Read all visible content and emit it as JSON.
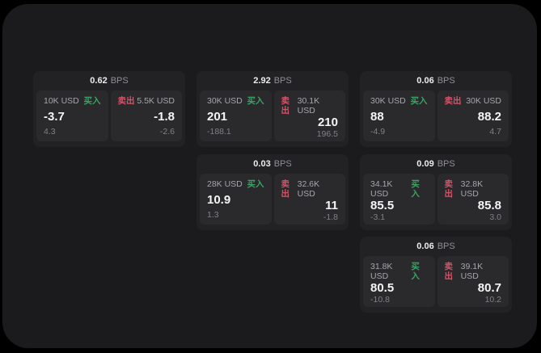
{
  "labels": {
    "bps_unit": "BPS",
    "buy": "买入",
    "sell": "卖出"
  },
  "colors": {
    "background": "#000000",
    "panel": "#1b1b1d",
    "card": "#222225",
    "subpanel": "#2a2a2d",
    "buy_accent": "#3aa364",
    "sell_accent": "#d25468",
    "value_text": "#f5f5f7",
    "muted_text": "#808086"
  },
  "cards": [
    {
      "bps": "0.62",
      "buy": {
        "notional": "10K USD",
        "price": "-3.7",
        "delta": "4.3"
      },
      "sell": {
        "notional": "5.5K USD",
        "price": "-1.8",
        "delta": "-2.6"
      }
    },
    {
      "bps": "2.92",
      "buy": {
        "notional": "30K USD",
        "price": "201",
        "delta": "-188.1"
      },
      "sell": {
        "notional": "30.1K USD",
        "price": "210",
        "delta": "196.5"
      }
    },
    {
      "bps": "0.06",
      "buy": {
        "notional": "30K USD",
        "price": "88",
        "delta": "-4.9"
      },
      "sell": {
        "notional": "30K USD",
        "price": "88.2",
        "delta": "4.7"
      }
    },
    {
      "bps": "0.03",
      "buy": {
        "notional": "28K USD",
        "price": "10.9",
        "delta": "1.3"
      },
      "sell": {
        "notional": "32.6K USD",
        "price": "11",
        "delta": "-1.8"
      }
    },
    {
      "bps": "0.09",
      "buy": {
        "notional": "34.1K USD",
        "price": "85.5",
        "delta": "-3.1"
      },
      "sell": {
        "notional": "32.8K USD",
        "price": "85.8",
        "delta": "3.0"
      }
    },
    {
      "bps": "0.06",
      "buy": {
        "notional": "31.8K USD",
        "price": "80.5",
        "delta": "-10.8"
      },
      "sell": {
        "notional": "39.1K USD",
        "price": "80.7",
        "delta": "10.2"
      }
    }
  ]
}
